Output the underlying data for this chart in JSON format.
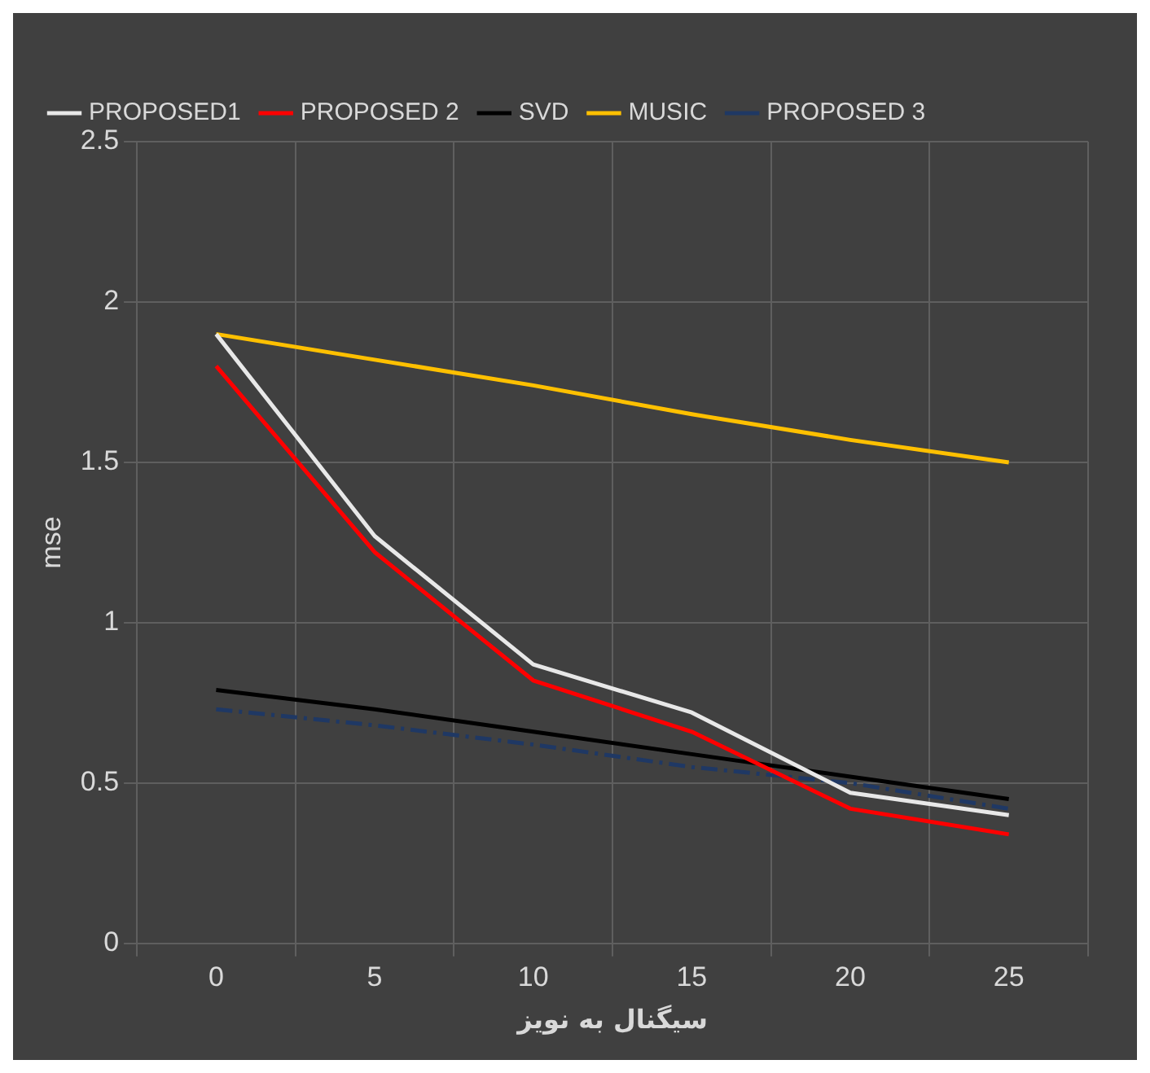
{
  "chart_data": {
    "type": "line",
    "xlabel": "سیگنال به نویز",
    "ylabel": "mse",
    "categories": [
      "0",
      "5",
      "10",
      "15",
      "20",
      "25"
    ],
    "series": [
      {
        "name": "PROPOSED1",
        "color": "#e8e8e8",
        "values": [
          1.9,
          1.27,
          0.87,
          0.72,
          0.47,
          0.4
        ]
      },
      {
        "name": "PROPOSED 2",
        "color": "#ff0000",
        "values": [
          1.8,
          1.22,
          0.82,
          0.66,
          0.42,
          0.34
        ]
      },
      {
        "name": "SVD",
        "color": "#000000",
        "values": [
          0.79,
          0.73,
          0.66,
          0.59,
          0.52,
          0.45
        ]
      },
      {
        "name": "MUSIC",
        "color": "#ffc000",
        "values": [
          1.9,
          1.82,
          1.74,
          1.65,
          1.57,
          1.5
        ]
      },
      {
        "name": "PROPOSED 3",
        "color": "#1f3864",
        "values": [
          0.73,
          0.68,
          0.62,
          0.55,
          0.5,
          0.42
        ],
        "line_style": "dashed"
      }
    ],
    "ylim": [
      0,
      2.5
    ],
    "yticks": [
      0,
      0.5,
      1,
      1.5,
      2,
      2.5
    ],
    "grid": true,
    "legend": "top",
    "marker": "none",
    "line_style": "solid"
  }
}
